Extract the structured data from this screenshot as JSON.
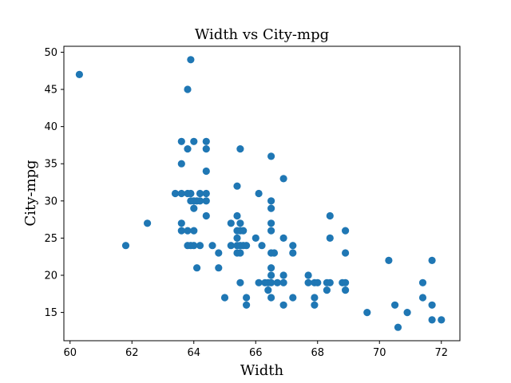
{
  "chart_data": {
    "type": "scatter",
    "title": "Width vs City-mpg",
    "xlabel": "Width",
    "ylabel": "City-mpg",
    "xlim": [
      59.8,
      72.6
    ],
    "ylim": [
      11.2,
      50.8
    ],
    "xticks": [
      60,
      62,
      64,
      66,
      68,
      70,
      72
    ],
    "yticks": [
      15,
      20,
      25,
      30,
      35,
      40,
      45,
      50
    ],
    "grid": false,
    "marker_color": "#1f77b4",
    "points": [
      [
        60.3,
        47
      ],
      [
        61.8,
        24
      ],
      [
        62.5,
        27
      ],
      [
        63.4,
        31
      ],
      [
        63.6,
        38
      ],
      [
        63.6,
        35
      ],
      [
        63.6,
        31
      ],
      [
        63.6,
        27
      ],
      [
        63.6,
        26
      ],
      [
        63.8,
        45
      ],
      [
        63.8,
        37
      ],
      [
        63.8,
        31
      ],
      [
        63.8,
        26
      ],
      [
        63.8,
        24
      ],
      [
        63.9,
        49
      ],
      [
        63.9,
        31
      ],
      [
        63.9,
        24
      ],
      [
        63.9,
        30
      ],
      [
        64.0,
        38
      ],
      [
        64.0,
        30
      ],
      [
        64.0,
        29
      ],
      [
        64.0,
        26
      ],
      [
        64.0,
        24
      ],
      [
        64.1,
        30
      ],
      [
        64.1,
        21
      ],
      [
        64.2,
        31
      ],
      [
        64.2,
        30
      ],
      [
        64.2,
        24
      ],
      [
        64.4,
        38
      ],
      [
        64.4,
        37
      ],
      [
        64.4,
        34
      ],
      [
        64.4,
        31
      ],
      [
        64.4,
        30
      ],
      [
        64.4,
        28
      ],
      [
        64.6,
        24
      ],
      [
        64.8,
        23
      ],
      [
        64.8,
        21
      ],
      [
        65.0,
        17
      ],
      [
        65.2,
        27
      ],
      [
        65.2,
        24
      ],
      [
        65.4,
        32
      ],
      [
        65.4,
        28
      ],
      [
        65.4,
        26
      ],
      [
        65.4,
        25
      ],
      [
        65.4,
        24
      ],
      [
        65.4,
        23
      ],
      [
        65.5,
        37
      ],
      [
        65.5,
        27
      ],
      [
        65.5,
        26
      ],
      [
        65.5,
        24
      ],
      [
        65.5,
        23
      ],
      [
        65.5,
        19
      ],
      [
        65.6,
        26
      ],
      [
        65.6,
        24
      ],
      [
        65.7,
        24
      ],
      [
        65.7,
        17
      ],
      [
        65.7,
        16
      ],
      [
        66.0,
        25
      ],
      [
        66.1,
        31
      ],
      [
        66.1,
        19
      ],
      [
        66.2,
        24
      ],
      [
        66.3,
        19
      ],
      [
        66.4,
        19
      ],
      [
        66.4,
        18
      ],
      [
        66.5,
        36
      ],
      [
        66.5,
        30
      ],
      [
        66.5,
        29
      ],
      [
        66.5,
        27
      ],
      [
        66.5,
        26
      ],
      [
        66.5,
        23
      ],
      [
        66.5,
        21
      ],
      [
        66.5,
        20
      ],
      [
        66.5,
        19
      ],
      [
        66.5,
        17
      ],
      [
        66.6,
        23
      ],
      [
        66.7,
        19
      ],
      [
        66.9,
        33
      ],
      [
        66.9,
        25
      ],
      [
        66.9,
        20
      ],
      [
        66.9,
        19
      ],
      [
        66.9,
        16
      ],
      [
        67.2,
        24
      ],
      [
        67.2,
        23
      ],
      [
        67.2,
        17
      ],
      [
        67.7,
        20
      ],
      [
        67.7,
        19
      ],
      [
        67.9,
        19
      ],
      [
        67.9,
        17
      ],
      [
        67.9,
        16
      ],
      [
        68.0,
        19
      ],
      [
        68.3,
        19
      ],
      [
        68.3,
        18
      ],
      [
        68.4,
        28
      ],
      [
        68.4,
        25
      ],
      [
        68.4,
        19
      ],
      [
        68.8,
        19
      ],
      [
        68.9,
        26
      ],
      [
        68.9,
        23
      ],
      [
        68.9,
        19
      ],
      [
        68.9,
        18
      ],
      [
        69.6,
        15
      ],
      [
        70.3,
        22
      ],
      [
        70.5,
        16
      ],
      [
        70.6,
        13
      ],
      [
        70.9,
        15
      ],
      [
        71.4,
        19
      ],
      [
        71.4,
        17
      ],
      [
        71.7,
        22
      ],
      [
        71.7,
        16
      ],
      [
        71.7,
        14
      ],
      [
        72.0,
        14
      ]
    ]
  }
}
